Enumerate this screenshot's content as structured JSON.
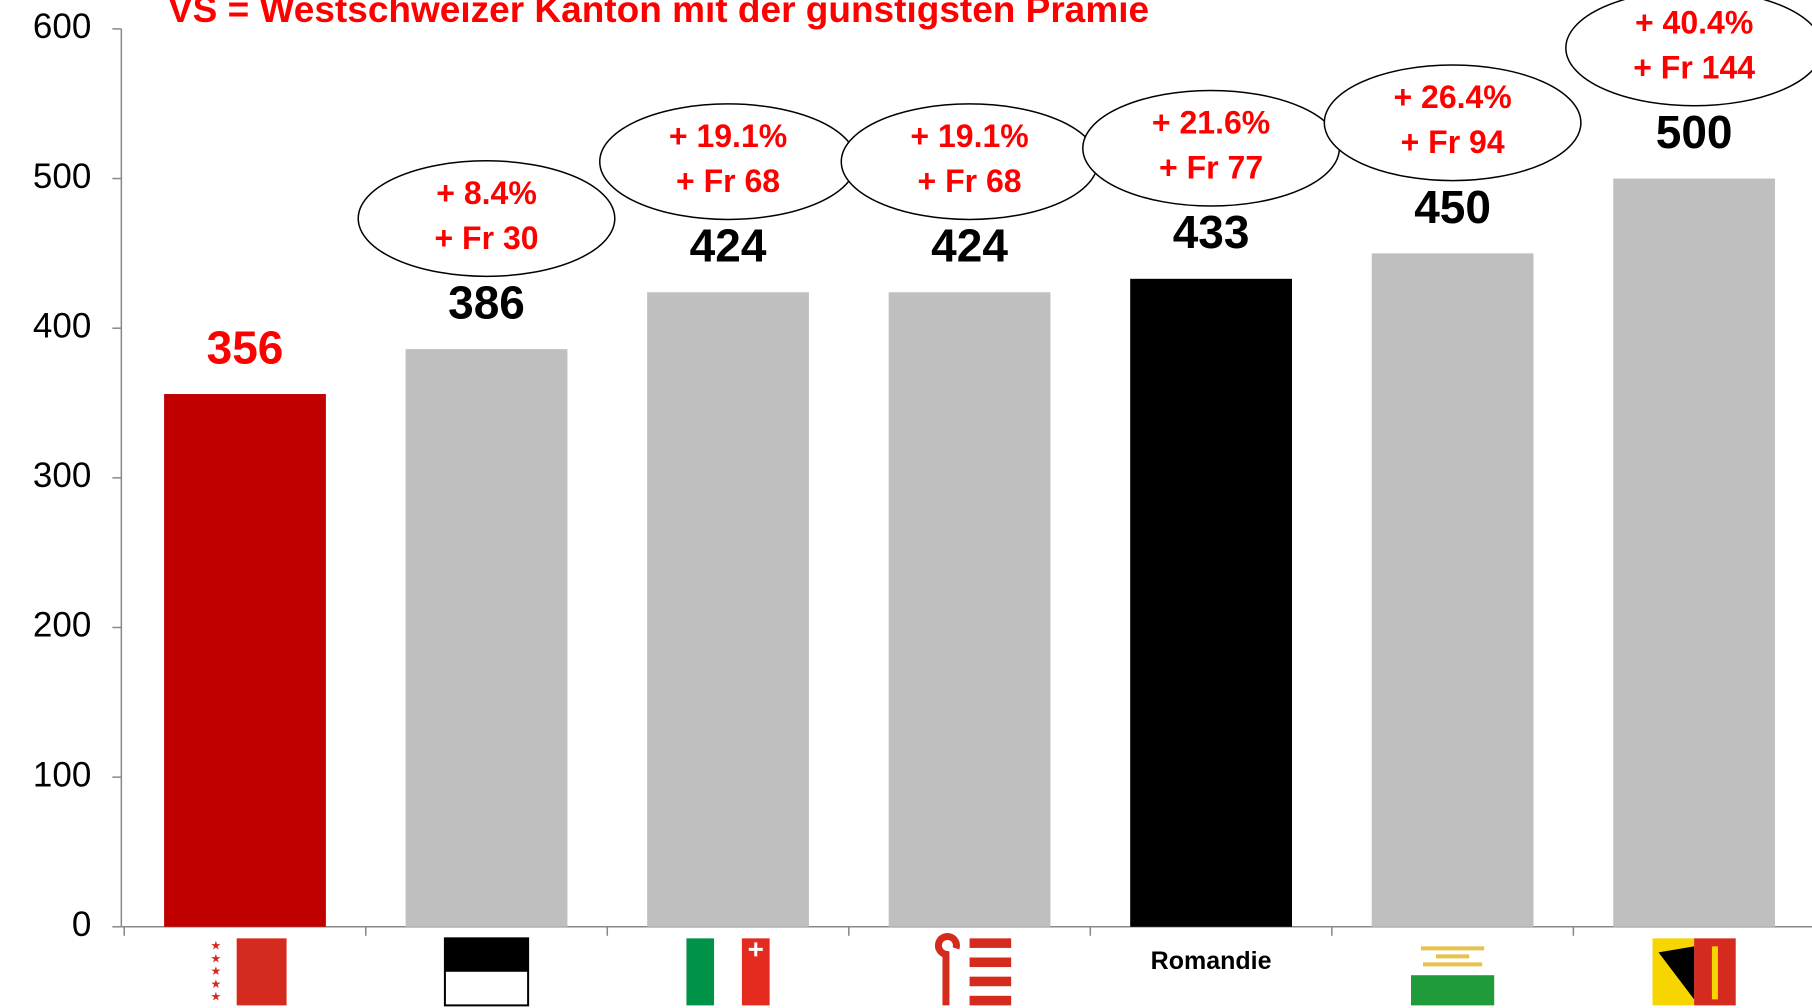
{
  "chart_data": {
    "type": "bar",
    "title": "VS = Westschweizer Kanton mit der günstigsten Prämie",
    "categories": [
      null,
      null,
      null,
      null,
      "Romandie",
      null,
      null
    ],
    "values": [
      356,
      386,
      424,
      424,
      433,
      450,
      500
    ],
    "colors": [
      "#c00000",
      "#bfbfbf",
      "#bfbfbf",
      "#bfbfbf",
      "#000000",
      "#bfbfbf",
      "#bfbfbf"
    ],
    "value_label_colors": [
      "#ff0000",
      "#000000",
      "#000000",
      "#000000",
      "#000000",
      "#000000",
      "#000000"
    ],
    "annotations": [
      null,
      [
        "+ 8.4%",
        "+ Fr 30"
      ],
      [
        "+ 19.1%",
        "+ Fr 68"
      ],
      [
        "+ 19.1%",
        "+ Fr 68"
      ],
      [
        "+ 21.6%",
        "+ Fr 77"
      ],
      [
        "+ 26.4%",
        "+ Fr 94"
      ],
      [
        "+ 40.4%",
        "+ Fr 144"
      ]
    ],
    "ylim": [
      0,
      600
    ],
    "yticks": [
      0,
      100,
      200,
      300,
      400,
      500,
      600
    ],
    "grid": false
  }
}
